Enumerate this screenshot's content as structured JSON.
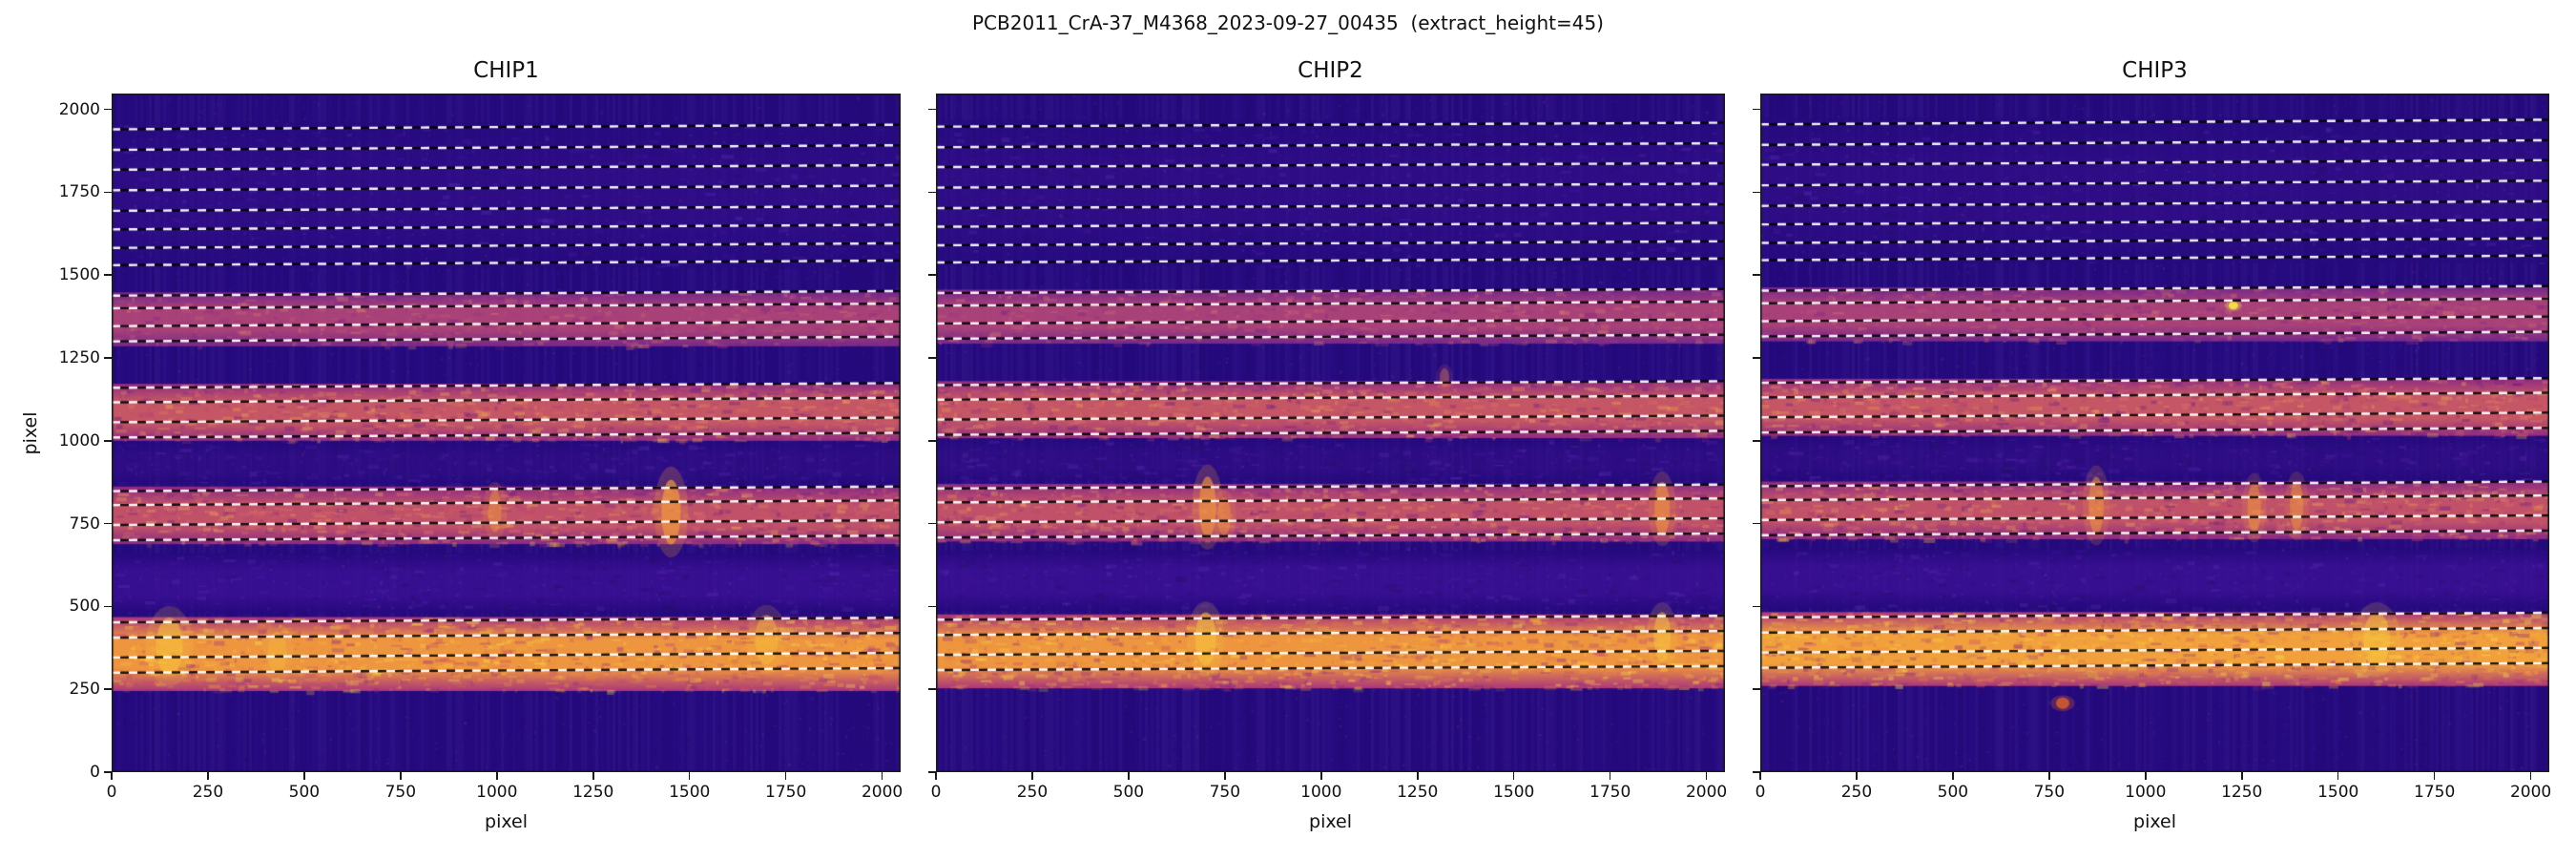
{
  "figure": {
    "title": "PCB2011_CrA-37_M4368_2023-09-27_00435  (extract_height=45)"
  },
  "chart_data": {
    "type": "heatmap",
    "colormap": "plasma",
    "extract_height": 45,
    "title": "PCB2011_CrA-37_M4368_2023-09-27_00435  (extract_height=45)",
    "x_label": "pixel",
    "y_label": "pixel",
    "x_range": [
      0,
      2048
    ],
    "y_range": [
      0,
      2048
    ],
    "x_ticks": [
      0,
      250,
      500,
      750,
      1000,
      1250,
      1500,
      1750,
      2000
    ],
    "y_ticks": [
      0,
      250,
      500,
      750,
      1000,
      1250,
      1500,
      1750,
      2000
    ],
    "background_color": "#260a80",
    "trace_line_colors": [
      "#ffffff",
      "#000000"
    ],
    "panels": [
      {
        "title": "CHIP1",
        "tilt": 14,
        "bands": [
          {
            "y0": 245,
            "y1": 468,
            "core": "#ee953f",
            "edge": "#aa367b",
            "alpha": 1.0,
            "mottle": "orange"
          },
          {
            "y0": 480,
            "y1": 660,
            "core": "#3b1095",
            "edge": "#27097f",
            "alpha": 0.8,
            "mottle": "faint"
          },
          {
            "y0": 688,
            "y1": 862,
            "core": "#c85568",
            "edge": "#8e2b85",
            "alpha": 0.95,
            "mottle": "pink"
          },
          {
            "y0": 870,
            "y1": 995,
            "core": "#330f88",
            "edge": "#26097e",
            "alpha": 0.6,
            "mottle": "faint"
          },
          {
            "y0": 1000,
            "y1": 1172,
            "core": "#cd5a64",
            "edge": "#952e82",
            "alpha": 0.95,
            "mottle": "pink"
          },
          {
            "y0": 1285,
            "y1": 1448,
            "core": "#b74878",
            "edge": "#7e2b8b",
            "alpha": 0.9,
            "mottle": "pinkdim"
          },
          {
            "y0": 1520,
            "y1": 1960,
            "core": "#320e8a",
            "edge": "#250a7e",
            "alpha": 0.65,
            "mottle": "faint"
          }
        ],
        "trace_lines": [
          300,
          346,
          406,
          452,
          700,
          746,
          806,
          848,
          1010,
          1056,
          1116,
          1160,
          1300,
          1346,
          1400,
          1438,
          1530,
          1582,
          1638,
          1694,
          1756,
          1818,
          1878,
          1940
        ],
        "artifacts": [
          {
            "x": 1452,
            "y": 785,
            "rx": 10,
            "ry": 34,
            "color": "#f0983f",
            "alpha": 0.7
          },
          {
            "x": 995,
            "y": 788,
            "rx": 7,
            "ry": 22,
            "color": "#e88d46",
            "alpha": 0.55
          },
          {
            "x": 150,
            "y": 380,
            "rx": 14,
            "ry": 30,
            "color": "#f8c63c",
            "alpha": 0.5
          },
          {
            "x": 430,
            "y": 360,
            "rx": 10,
            "ry": 22,
            "color": "#f5b83e",
            "alpha": 0.45
          },
          {
            "x": 1700,
            "y": 400,
            "rx": 12,
            "ry": 26,
            "color": "#f6bf3b",
            "alpha": 0.45
          }
        ]
      },
      {
        "title": "CHIP2",
        "tilt": 12,
        "bands": [
          {
            "y0": 253,
            "y1": 476,
            "core": "#ee953f",
            "edge": "#aa367b",
            "alpha": 1.0,
            "mottle": "orange"
          },
          {
            "y0": 488,
            "y1": 668,
            "core": "#3b1095",
            "edge": "#27097f",
            "alpha": 0.8,
            "mottle": "faint"
          },
          {
            "y0": 696,
            "y1": 870,
            "core": "#c85568",
            "edge": "#8e2b85",
            "alpha": 0.95,
            "mottle": "pink"
          },
          {
            "y0": 878,
            "y1": 1003,
            "core": "#330f88",
            "edge": "#26097e",
            "alpha": 0.6,
            "mottle": "faint"
          },
          {
            "y0": 1008,
            "y1": 1180,
            "core": "#cd5a64",
            "edge": "#952e82",
            "alpha": 0.95,
            "mottle": "pink"
          },
          {
            "y0": 1293,
            "y1": 1456,
            "core": "#b74878",
            "edge": "#7e2b8b",
            "alpha": 0.9,
            "mottle": "pinkdim"
          },
          {
            "y0": 1528,
            "y1": 1968,
            "core": "#320e8a",
            "edge": "#250a7e",
            "alpha": 0.65,
            "mottle": "faint"
          }
        ],
        "trace_lines": [
          308,
          354,
          414,
          460,
          708,
          754,
          814,
          856,
          1018,
          1064,
          1124,
          1168,
          1308,
          1354,
          1408,
          1446,
          1538,
          1590,
          1646,
          1702,
          1764,
          1826,
          1886,
          1948
        ],
        "artifacts": [
          {
            "x": 705,
            "y": 800,
            "rx": 9,
            "ry": 32,
            "color": "#ef9540",
            "alpha": 0.65
          },
          {
            "x": 748,
            "y": 772,
            "rx": 7,
            "ry": 20,
            "color": "#ef9540",
            "alpha": 0.5
          },
          {
            "x": 1885,
            "y": 795,
            "rx": 8,
            "ry": 28,
            "color": "#ef9540",
            "alpha": 0.6
          },
          {
            "x": 700,
            "y": 402,
            "rx": 11,
            "ry": 28,
            "color": "#f7c43d",
            "alpha": 0.55
          },
          {
            "x": 1885,
            "y": 408,
            "rx": 9,
            "ry": 26,
            "color": "#f7c43d",
            "alpha": 0.5
          },
          {
            "x": 1320,
            "y": 1190,
            "rx": 5,
            "ry": 10,
            "color": "#e07a5a",
            "alpha": 0.4
          }
        ]
      },
      {
        "title": "CHIP3",
        "tilt": 14,
        "bands": [
          {
            "y0": 260,
            "y1": 483,
            "core": "#f1a03c",
            "edge": "#aa367b",
            "alpha": 1.0,
            "mottle": "orange"
          },
          {
            "y0": 495,
            "y1": 675,
            "core": "#3b1095",
            "edge": "#27097f",
            "alpha": 0.8,
            "mottle": "faint"
          },
          {
            "y0": 703,
            "y1": 877,
            "core": "#c85568",
            "edge": "#8e2b85",
            "alpha": 0.95,
            "mottle": "pink"
          },
          {
            "y0": 885,
            "y1": 1010,
            "core": "#330f88",
            "edge": "#26097e",
            "alpha": 0.6,
            "mottle": "faint"
          },
          {
            "y0": 1015,
            "y1": 1187,
            "core": "#cd5a64",
            "edge": "#952e82",
            "alpha": 0.95,
            "mottle": "pink"
          },
          {
            "y0": 1300,
            "y1": 1463,
            "core": "#b74878",
            "edge": "#7e2b8b",
            "alpha": 0.9,
            "mottle": "pinkdim"
          },
          {
            "y0": 1535,
            "y1": 1975,
            "core": "#320e8a",
            "edge": "#250a7e",
            "alpha": 0.65,
            "mottle": "faint"
          }
        ],
        "trace_lines": [
          315,
          361,
          421,
          467,
          715,
          761,
          821,
          863,
          1025,
          1071,
          1131,
          1175,
          1315,
          1361,
          1415,
          1453,
          1545,
          1597,
          1653,
          1709,
          1771,
          1833,
          1893,
          1955
        ],
        "artifacts": [
          {
            "x": 785,
            "y": 208,
            "rx": 7,
            "ry": 6,
            "color": "#cf5b2e",
            "alpha": 0.9
          },
          {
            "x": 1228,
            "y": 1408,
            "rx": 5,
            "ry": 4,
            "color": "#f3e04a",
            "alpha": 0.95
          },
          {
            "x": 872,
            "y": 805,
            "rx": 8,
            "ry": 30,
            "color": "#ef9540",
            "alpha": 0.55
          },
          {
            "x": 1282,
            "y": 798,
            "rx": 7,
            "ry": 26,
            "color": "#ef9540",
            "alpha": 0.5
          },
          {
            "x": 1392,
            "y": 803,
            "rx": 7,
            "ry": 26,
            "color": "#ef9540",
            "alpha": 0.5
          },
          {
            "x": 1600,
            "y": 400,
            "rx": 14,
            "ry": 28,
            "color": "#f8c63c",
            "alpha": 0.5
          }
        ]
      }
    ]
  }
}
